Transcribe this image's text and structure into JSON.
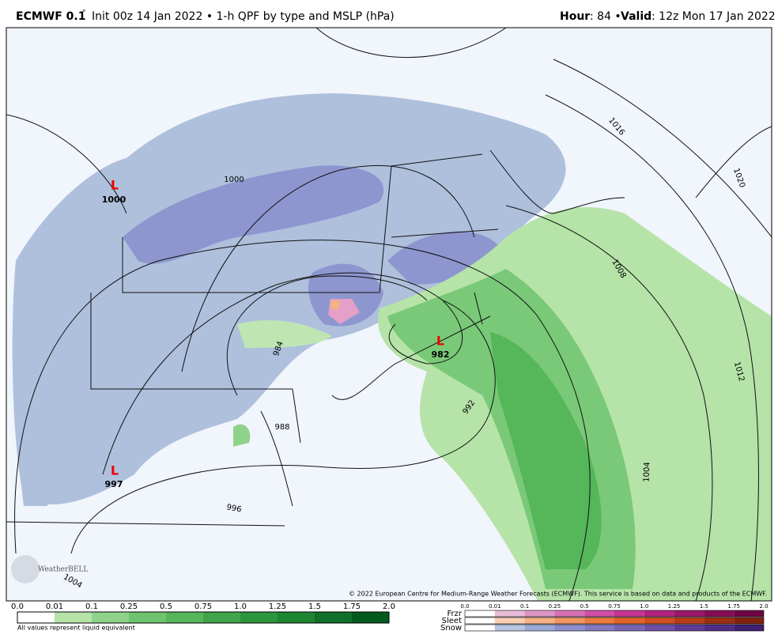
{
  "header": {
    "model": "ECMWF 0.1",
    "degree": "°",
    "description": "Init 00z 14 Jan 2022 • 1-h QPF by type and MSLP (hPa)",
    "hour_label": "Hour",
    "hour_value": ": 84 •",
    "valid_label": "Valid",
    "valid_value": ": 12z Mon 17 Jan 2022"
  },
  "map": {
    "lows": [
      {
        "symbol": "L",
        "pressure": "1000"
      },
      {
        "symbol": "L",
        "pressure": "982"
      },
      {
        "symbol": "L",
        "pressure": "997"
      }
    ],
    "isobar_labels": [
      "1000",
      "984",
      "988",
      "992",
      "996",
      "1004",
      "1008",
      "1012",
      "1016",
      "1020",
      "1004"
    ],
    "logo": "WeatherBELL",
    "copyright": "© 2022 European Centre for Medium-Range Weather Forecasts (ECMWF). This service is based on data and products of the ECMWF."
  },
  "rain_legend": {
    "labels": [
      "0.0",
      "0.01",
      "0.1",
      "0.25",
      "0.5",
      "0.75",
      "1.0",
      "1.25",
      "1.5",
      "1.75",
      "2.0"
    ],
    "note": "All values represent liquid equivalent"
  },
  "mixed_legend": {
    "labels": [
      "0.0",
      "0.01",
      "0.1",
      "0.25",
      "0.5",
      "0.75",
      "1.0",
      "1.25",
      "1.5",
      "1.75",
      "2.0"
    ],
    "rows": [
      "Frzr",
      "Sleet",
      "Snow"
    ]
  }
}
